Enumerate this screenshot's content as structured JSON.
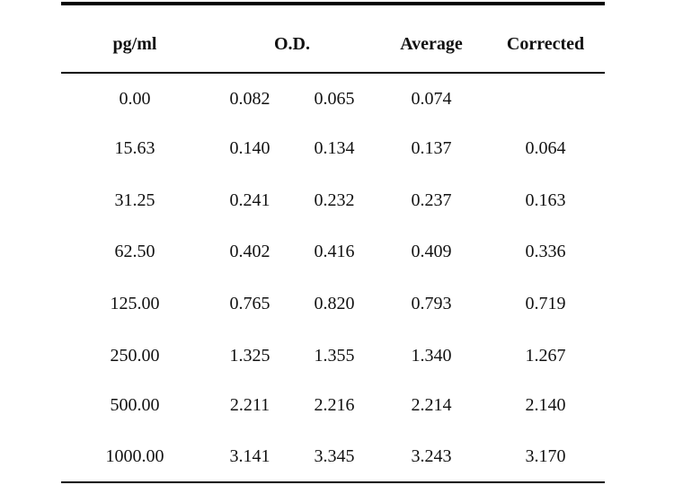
{
  "table": {
    "headers": {
      "pg": "pg/ml",
      "od": "O.D.",
      "avg": "Average",
      "cor": "Corrected"
    },
    "rows": [
      {
        "pg": "0.00",
        "od1": "0.082",
        "od2": "0.065",
        "avg": "0.074",
        "cor": ""
      },
      {
        "pg": "15.63",
        "od1": "0.140",
        "od2": "0.134",
        "avg": "0.137",
        "cor": "0.064"
      },
      {
        "pg": "31.25",
        "od1": "0.241",
        "od2": "0.232",
        "avg": "0.237",
        "cor": "0.163"
      },
      {
        "pg": "62.50",
        "od1": "0.402",
        "od2": "0.416",
        "avg": "0.409",
        "cor": "0.336"
      },
      {
        "pg": "125.00",
        "od1": "0.765",
        "od2": "0.820",
        "avg": "0.793",
        "cor": "0.719"
      },
      {
        "pg": "250.00",
        "od1": "1.325",
        "od2": "1.355",
        "avg": "1.340",
        "cor": "1.267"
      },
      {
        "pg": "500.00",
        "od1": "2.211",
        "od2": "2.216",
        "avg": "2.214",
        "cor": "2.140"
      },
      {
        "pg": "1000.00",
        "od1": "3.141",
        "od2": "3.345",
        "avg": "3.243",
        "cor": "3.170"
      }
    ]
  }
}
